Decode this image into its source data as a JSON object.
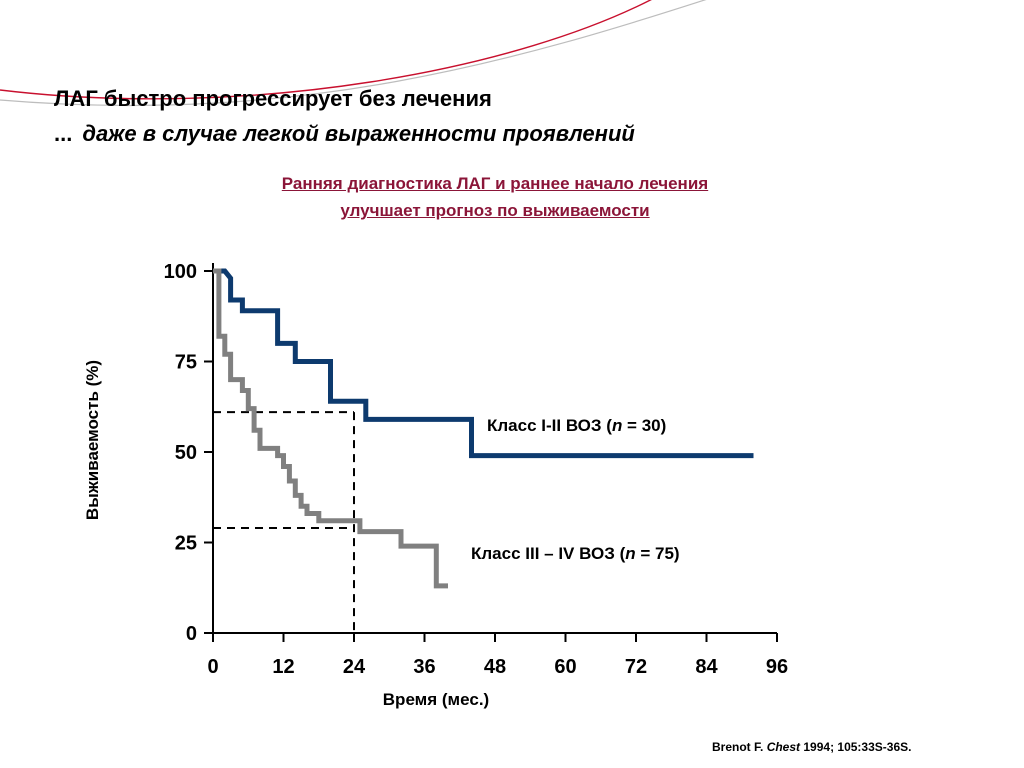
{
  "headline": {
    "line1": "ЛАГ быстро прогрессирует без лечения",
    "line2_lead": "...",
    "line2_text": "даже в случае легкой выраженности проявлений"
  },
  "subtitle": {
    "line1": "Ранняя диагностика ЛАГ и раннее начало лечения",
    "line2": "улучшает прогноз по выживаемости"
  },
  "colors": {
    "accent": "#8b1538",
    "series_class_1_2": "#0d3a6e",
    "series_class_3_4": "#808080"
  },
  "chart_data": {
    "type": "line",
    "step": true,
    "ylabel": "Выживаемость (%)",
    "xlabel": "Время (мес.)",
    "xlim": [
      0,
      96
    ],
    "ylim": [
      0,
      100
    ],
    "xticks": [
      0,
      12,
      24,
      36,
      48,
      60,
      72,
      84,
      96
    ],
    "yticks": [
      0,
      25,
      50,
      75,
      100
    ],
    "grid": false,
    "series": [
      {
        "name": "Класс I-II ВОЗ (n = 30)",
        "label_prefix": "Класс I-II ВОЗ (",
        "label_n": "n",
        "label_suffix": " = 30)",
        "color": "#0d3a6e",
        "points": [
          [
            0,
            100
          ],
          [
            2,
            100
          ],
          [
            3,
            98
          ],
          [
            3,
            92
          ],
          [
            5,
            92
          ],
          [
            5,
            89
          ],
          [
            11,
            89
          ],
          [
            11,
            80
          ],
          [
            14,
            80
          ],
          [
            14,
            75
          ],
          [
            20,
            75
          ],
          [
            20,
            64
          ],
          [
            26,
            64
          ],
          [
            26,
            59
          ],
          [
            44,
            59
          ],
          [
            44,
            49
          ],
          [
            92,
            49
          ]
        ]
      },
      {
        "name": "Класс III – IV ВОЗ (n = 75)",
        "label_prefix": "Класс III – IV ВОЗ (",
        "label_n": "n",
        "label_suffix": " = 75)",
        "color": "#808080",
        "points": [
          [
            0,
            100
          ],
          [
            1,
            100
          ],
          [
            1,
            82
          ],
          [
            2,
            82
          ],
          [
            2,
            77
          ],
          [
            3,
            77
          ],
          [
            3,
            70
          ],
          [
            5,
            70
          ],
          [
            5,
            67
          ],
          [
            6,
            67
          ],
          [
            6,
            62
          ],
          [
            7,
            62
          ],
          [
            7,
            56
          ],
          [
            8,
            56
          ],
          [
            8,
            51
          ],
          [
            11,
            51
          ],
          [
            11,
            49
          ],
          [
            12,
            49
          ],
          [
            12,
            46
          ],
          [
            13,
            46
          ],
          [
            13,
            42
          ],
          [
            14,
            42
          ],
          [
            14,
            38
          ],
          [
            15,
            38
          ],
          [
            15,
            35
          ],
          [
            16,
            35
          ],
          [
            16,
            33
          ],
          [
            18,
            33
          ],
          [
            18,
            31
          ],
          [
            25,
            31
          ],
          [
            25,
            28
          ],
          [
            32,
            28
          ],
          [
            32,
            24
          ],
          [
            38,
            24
          ],
          [
            38,
            13
          ],
          [
            40,
            13
          ]
        ]
      }
    ],
    "reference_lines": [
      {
        "x": 24,
        "y": 61
      },
      {
        "x": 24,
        "y": 29
      }
    ]
  },
  "citation": {
    "author": "Brenot F.",
    "journal": "Chest",
    "details": "1994; 105:33S-36S."
  }
}
